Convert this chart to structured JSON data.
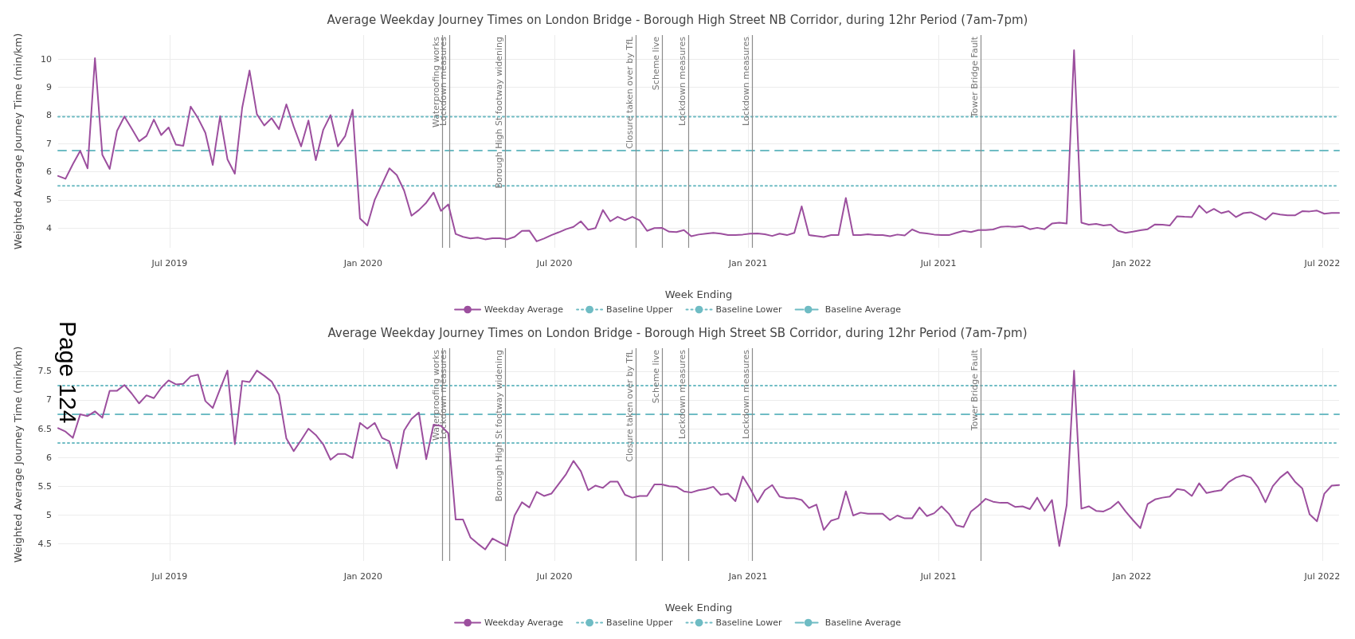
{
  "chart_data": [
    {
      "type": "line",
      "title": "Average Weekday Journey Times on London Bridge - Borough High Street NB Corridor, during 12hr Period (7am-7pm)",
      "xlabel": "Week Ending",
      "ylabel": "Weighted Average Journey Time (min/km)",
      "xlim": [
        "2019-03-17",
        "2022-07-17"
      ],
      "ylim": [
        3.3,
        10.85
      ],
      "xticks": [
        {
          "value": "2019-07-01",
          "label": "Jul 2019"
        },
        {
          "value": "2020-01-01",
          "label": "Jan 2020"
        },
        {
          "value": "2020-07-01",
          "label": "Jul 2020"
        },
        {
          "value": "2021-01-01",
          "label": "Jan 2021"
        },
        {
          "value": "2021-07-01",
          "label": "Jul 2021"
        },
        {
          "value": "2022-01-01",
          "label": "Jan 2022"
        },
        {
          "value": "2022-07-01",
          "label": "Jul 2022"
        }
      ],
      "yticks": [
        4,
        5,
        6,
        7,
        8,
        9,
        10
      ],
      "grid": true,
      "legend": "bottom",
      "marker": "none",
      "x": [
        "2019-03-17",
        "2019-03-24",
        "2019-03-31",
        "2019-04-07",
        "2019-04-14",
        "2019-04-21",
        "2019-04-28",
        "2019-05-05",
        "2019-05-12",
        "2019-05-19",
        "2019-05-26",
        "2019-06-02",
        "2019-06-09",
        "2019-06-16",
        "2019-06-23",
        "2019-06-30",
        "2019-07-07",
        "2019-07-14",
        "2019-07-21",
        "2019-07-28",
        "2019-08-04",
        "2019-08-11",
        "2019-08-18",
        "2019-08-25",
        "2019-09-01",
        "2019-09-08",
        "2019-09-15",
        "2019-09-22",
        "2019-09-29",
        "2019-10-06",
        "2019-10-13",
        "2019-10-20",
        "2019-10-27",
        "2019-11-03",
        "2019-11-10",
        "2019-11-17",
        "2019-11-24",
        "2019-12-01",
        "2019-12-08",
        "2019-12-15",
        "2019-12-22",
        "2019-12-29",
        "2020-01-05",
        "2020-01-12",
        "2020-01-19",
        "2020-01-26",
        "2020-02-02",
        "2020-02-09",
        "2020-02-16",
        "2020-02-23",
        "2020-03-01",
        "2020-03-08",
        "2020-03-15",
        "2020-03-22",
        "2020-03-29",
        "2020-04-05",
        "2020-04-12",
        "2020-04-19",
        "2020-04-26",
        "2020-05-03",
        "2020-05-10",
        "2020-05-17",
        "2020-05-24",
        "2020-05-31",
        "2020-06-07",
        "2020-06-14",
        "2020-06-21",
        "2020-06-28",
        "2020-07-05",
        "2020-07-12",
        "2020-07-19",
        "2020-07-26",
        "2020-08-02",
        "2020-08-09",
        "2020-08-16",
        "2020-08-23",
        "2020-08-30",
        "2020-09-06",
        "2020-09-13",
        "2020-09-20",
        "2020-09-27",
        "2020-10-04",
        "2020-10-11",
        "2020-10-18",
        "2020-10-25",
        "2020-11-01",
        "2020-11-08",
        "2020-11-15",
        "2020-11-22",
        "2020-11-29",
        "2020-12-06",
        "2020-12-13",
        "2020-12-20",
        "2020-12-27",
        "2021-01-03",
        "2021-01-10",
        "2021-01-17",
        "2021-01-24",
        "2021-01-31",
        "2021-02-07",
        "2021-02-14",
        "2021-02-21",
        "2021-02-28",
        "2021-03-07",
        "2021-03-14",
        "2021-03-21",
        "2021-03-28",
        "2021-04-04",
        "2021-04-11",
        "2021-04-18",
        "2021-04-25",
        "2021-05-02",
        "2021-05-09",
        "2021-05-16",
        "2021-05-23",
        "2021-05-30",
        "2021-06-06",
        "2021-06-13",
        "2021-06-20",
        "2021-06-27",
        "2021-07-04",
        "2021-07-11",
        "2021-07-18",
        "2021-07-25",
        "2021-08-01",
        "2021-08-08",
        "2021-08-15",
        "2021-08-22",
        "2021-08-29",
        "2021-09-05",
        "2021-09-12",
        "2021-09-19",
        "2021-09-26",
        "2021-10-03",
        "2021-10-10",
        "2021-10-17",
        "2021-10-24",
        "2021-10-31",
        "2021-11-07",
        "2021-11-14",
        "2021-11-21",
        "2021-11-28",
        "2021-12-05",
        "2021-12-12",
        "2021-12-19",
        "2021-12-26",
        "2022-01-02",
        "2022-01-09",
        "2022-01-16",
        "2022-01-23",
        "2022-01-30",
        "2022-02-06",
        "2022-02-13",
        "2022-02-20",
        "2022-02-27",
        "2022-03-06",
        "2022-03-13",
        "2022-03-20",
        "2022-03-27",
        "2022-04-03",
        "2022-04-10",
        "2022-04-17",
        "2022-04-24",
        "2022-05-01",
        "2022-05-08",
        "2022-05-15",
        "2022-05-22",
        "2022-05-29",
        "2022-06-05",
        "2022-06-12",
        "2022-06-19",
        "2022-06-26",
        "2022-07-03",
        "2022-07-10",
        "2022-07-17"
      ],
      "series": [
        {
          "name": "Weekday Average",
          "color": "#9c4f9e",
          "line_style": "solid",
          "values": [
            5.85,
            5.75,
            6.27,
            6.74,
            6.12,
            10.03,
            6.6,
            6.1,
            7.45,
            7.96,
            7.53,
            7.08,
            7.27,
            7.85,
            7.3,
            7.57,
            6.96,
            6.92,
            8.31,
            7.9,
            7.38,
            6.24,
            7.97,
            6.44,
            5.93,
            8.27,
            9.59,
            8.04,
            7.64,
            7.9,
            7.51,
            8.39,
            7.6,
            6.9,
            7.82,
            6.41,
            7.48,
            8.01,
            6.9,
            7.27,
            8.2,
            4.34,
            4.09,
            5.0,
            5.56,
            6.12,
            5.88,
            5.33,
            4.44,
            4.64,
            4.9,
            5.26,
            4.61,
            4.84,
            3.79,
            3.69,
            3.63,
            3.66,
            3.6,
            3.64,
            3.64,
            3.6,
            3.69,
            3.9,
            3.91,
            3.53,
            3.63,
            3.75,
            3.85,
            3.96,
            4.04,
            4.24,
            3.94,
            4.0,
            4.64,
            4.24,
            4.4,
            4.28,
            4.4,
            4.27,
            3.9,
            4.0,
            4.01,
            3.87,
            3.86,
            3.93,
            3.71,
            3.77,
            3.8,
            3.83,
            3.8,
            3.75,
            3.75,
            3.77,
            3.8,
            3.81,
            3.78,
            3.72,
            3.8,
            3.75,
            3.83,
            4.77,
            3.75,
            3.72,
            3.68,
            3.75,
            3.75,
            5.07,
            3.75,
            3.75,
            3.78,
            3.75,
            3.75,
            3.71,
            3.77,
            3.74,
            3.95,
            3.84,
            3.81,
            3.77,
            3.75,
            3.75,
            3.83,
            3.9,
            3.86,
            3.93,
            3.93,
            3.95,
            4.04,
            4.06,
            4.04,
            4.07,
            3.96,
            4.01,
            3.96,
            4.16,
            4.19,
            4.16,
            10.31,
            4.19,
            4.12,
            4.15,
            4.09,
            4.12,
            3.9,
            3.83,
            3.87,
            3.92,
            3.96,
            4.13,
            4.12,
            4.09,
            4.42,
            4.4,
            4.39,
            4.8,
            4.54,
            4.68,
            4.53,
            4.6,
            4.39,
            4.53,
            4.56,
            4.44,
            4.3,
            4.53,
            4.48,
            4.45,
            4.45,
            4.6,
            4.59,
            4.62,
            4.51,
            4.54,
            4.54
          ]
        },
        {
          "name": "Baseline Upper",
          "color": "#6fbcc4",
          "line_style": "dotted",
          "x": [
            "2019-03-17",
            "2022-07-17"
          ],
          "values": [
            7.95,
            7.95
          ]
        },
        {
          "name": "Baseline Lower",
          "color": "#6fbcc4",
          "line_style": "dotted",
          "x": [
            "2019-03-17",
            "2022-07-17"
          ],
          "values": [
            5.5,
            5.5
          ]
        },
        {
          "name": "Baseline Average",
          "color": "#6fbcc4",
          "line_style": "dashed",
          "x": [
            "2019-03-17",
            "2022-07-17"
          ],
          "values": [
            6.75,
            6.75
          ]
        }
      ],
      "ref_lines": [
        {
          "axis": "x",
          "value": "2020-03-16",
          "label": "Waterproofing works",
          "color": "#8c8c8c"
        },
        {
          "axis": "x",
          "value": "2020-03-23",
          "label": "Lockdown measures",
          "color": "#8c8c8c"
        },
        {
          "axis": "x",
          "value": "2020-05-15",
          "label": "Borough High St footway widening",
          "color": "#8c8c8c"
        },
        {
          "axis": "x",
          "value": "2020-09-16",
          "label": "Closure taken over by TfL",
          "color": "#8c8c8c"
        },
        {
          "axis": "x",
          "value": "2020-10-11",
          "label": "Scheme live",
          "color": "#8c8c8c"
        },
        {
          "axis": "x",
          "value": "2020-11-05",
          "label": "Lockdown measures",
          "color": "#8c8c8c"
        },
        {
          "axis": "x",
          "value": "2021-01-05",
          "label": "Lockdown measures",
          "color": "#8c8c8c"
        },
        {
          "axis": "x",
          "value": "2021-08-10",
          "label": "Tower Bridge Fault",
          "color": "#8c8c8c"
        }
      ]
    },
    {
      "type": "line",
      "title": "Average Weekday Journey Times on London Bridge - Borough High Street SB Corridor, during 12hr Period (7am-7pm)",
      "xlabel": "Week Ending",
      "ylabel": "Weighted Average Journey Time (min/km)",
      "annotations": [
        "Page 124"
      ],
      "xlim": [
        "2019-03-17",
        "2022-07-17"
      ],
      "ylim": [
        4.2,
        7.9
      ],
      "xticks": [
        {
          "value": "2019-07-01",
          "label": "Jul 2019"
        },
        {
          "value": "2020-01-01",
          "label": "Jan 2020"
        },
        {
          "value": "2020-07-01",
          "label": "Jul 2020"
        },
        {
          "value": "2021-01-01",
          "label": "Jan 2021"
        },
        {
          "value": "2021-07-01",
          "label": "Jul 2021"
        },
        {
          "value": "2022-01-01",
          "label": "Jan 2022"
        },
        {
          "value": "2022-07-01",
          "label": "Jul 2022"
        }
      ],
      "yticks": [
        4.5,
        5,
        5.5,
        6,
        6.5,
        7,
        7.5
      ],
      "grid": true,
      "legend": "bottom",
      "marker": "none",
      "x": [
        "2019-03-17",
        "2019-03-24",
        "2019-03-31",
        "2019-04-07",
        "2019-04-14",
        "2019-04-21",
        "2019-04-28",
        "2019-05-05",
        "2019-05-12",
        "2019-05-19",
        "2019-05-26",
        "2019-06-02",
        "2019-06-09",
        "2019-06-16",
        "2019-06-23",
        "2019-06-30",
        "2019-07-07",
        "2019-07-14",
        "2019-07-21",
        "2019-07-28",
        "2019-08-04",
        "2019-08-11",
        "2019-08-18",
        "2019-08-25",
        "2019-09-01",
        "2019-09-08",
        "2019-09-15",
        "2019-09-22",
        "2019-09-29",
        "2019-10-06",
        "2019-10-13",
        "2019-10-20",
        "2019-10-27",
        "2019-11-03",
        "2019-11-10",
        "2019-11-17",
        "2019-11-24",
        "2019-12-01",
        "2019-12-08",
        "2019-12-15",
        "2019-12-22",
        "2019-12-29",
        "2020-01-05",
        "2020-01-12",
        "2020-01-19",
        "2020-01-26",
        "2020-02-02",
        "2020-02-09",
        "2020-02-16",
        "2020-02-23",
        "2020-03-01",
        "2020-03-08",
        "2020-03-15",
        "2020-03-22",
        "2020-03-29",
        "2020-04-05",
        "2020-04-12",
        "2020-04-19",
        "2020-04-26",
        "2020-05-03",
        "2020-05-10",
        "2020-05-17",
        "2020-05-24",
        "2020-05-31",
        "2020-06-07",
        "2020-06-14",
        "2020-06-21",
        "2020-06-28",
        "2020-07-05",
        "2020-07-12",
        "2020-07-19",
        "2020-07-26",
        "2020-08-02",
        "2020-08-09",
        "2020-08-16",
        "2020-08-23",
        "2020-08-30",
        "2020-09-06",
        "2020-09-13",
        "2020-09-20",
        "2020-09-27",
        "2020-10-04",
        "2020-10-11",
        "2020-10-18",
        "2020-10-25",
        "2020-11-01",
        "2020-11-08",
        "2020-11-15",
        "2020-11-22",
        "2020-11-29",
        "2020-12-06",
        "2020-12-13",
        "2020-12-20",
        "2020-12-27",
        "2021-01-03",
        "2021-01-10",
        "2021-01-17",
        "2021-01-24",
        "2021-01-31",
        "2021-02-07",
        "2021-02-14",
        "2021-02-21",
        "2021-02-28",
        "2021-03-07",
        "2021-03-14",
        "2021-03-21",
        "2021-03-28",
        "2021-04-04",
        "2021-04-11",
        "2021-04-18",
        "2021-04-25",
        "2021-05-02",
        "2021-05-09",
        "2021-05-16",
        "2021-05-23",
        "2021-05-30",
        "2021-06-06",
        "2021-06-13",
        "2021-06-20",
        "2021-06-27",
        "2021-07-04",
        "2021-07-11",
        "2021-07-18",
        "2021-07-25",
        "2021-08-01",
        "2021-08-08",
        "2021-08-15",
        "2021-08-22",
        "2021-08-29",
        "2021-09-05",
        "2021-09-12",
        "2021-09-19",
        "2021-09-26",
        "2021-10-03",
        "2021-10-10",
        "2021-10-17",
        "2021-10-24",
        "2021-10-31",
        "2021-11-07",
        "2021-11-14",
        "2021-11-21",
        "2021-11-28",
        "2021-12-05",
        "2021-12-12",
        "2021-12-19",
        "2021-12-26",
        "2022-01-02",
        "2022-01-09",
        "2022-01-16",
        "2022-01-23",
        "2022-01-30",
        "2022-02-06",
        "2022-02-13",
        "2022-02-20",
        "2022-02-27",
        "2022-03-06",
        "2022-03-13",
        "2022-03-20",
        "2022-03-27",
        "2022-04-03",
        "2022-04-10",
        "2022-04-17",
        "2022-04-24",
        "2022-05-01",
        "2022-05-08",
        "2022-05-15",
        "2022-05-22",
        "2022-05-29",
        "2022-06-05",
        "2022-06-12",
        "2022-06-19",
        "2022-06-26",
        "2022-07-03",
        "2022-07-10",
        "2022-07-17"
      ],
      "series": [
        {
          "name": "Weekday Average",
          "color": "#9c4f9e",
          "line_style": "solid",
          "values": [
            6.51,
            6.45,
            6.34,
            6.75,
            6.72,
            6.8,
            6.69,
            7.16,
            7.16,
            7.26,
            7.11,
            6.94,
            7.08,
            7.03,
            7.21,
            7.34,
            7.27,
            7.28,
            7.41,
            7.44,
            6.98,
            6.86,
            7.19,
            7.51,
            6.23,
            7.33,
            7.31,
            7.51,
            7.42,
            7.32,
            7.09,
            6.33,
            6.11,
            6.3,
            6.5,
            6.39,
            6.23,
            5.96,
            6.06,
            6.06,
            5.99,
            6.6,
            6.5,
            6.6,
            6.34,
            6.28,
            5.81,
            6.47,
            6.67,
            6.78,
            5.97,
            6.57,
            6.55,
            6.42,
            4.92,
            4.92,
            4.61,
            4.5,
            4.4,
            4.59,
            4.52,
            4.46,
            4.99,
            5.22,
            5.13,
            5.4,
            5.33,
            5.37,
            5.54,
            5.71,
            5.94,
            5.76,
            5.43,
            5.51,
            5.47,
            5.58,
            5.58,
            5.35,
            5.3,
            5.33,
            5.33,
            5.53,
            5.53,
            5.5,
            5.49,
            5.41,
            5.39,
            5.43,
            5.45,
            5.49,
            5.35,
            5.37,
            5.24,
            5.67,
            5.46,
            5.22,
            5.43,
            5.52,
            5.32,
            5.29,
            5.29,
            5.26,
            5.12,
            5.18,
            4.74,
            4.9,
            4.94,
            5.41,
            4.99,
            5.04,
            5.02,
            5.02,
            5.02,
            4.91,
            4.99,
            4.94,
            4.94,
            5.13,
            4.98,
            5.03,
            5.15,
            5.02,
            4.82,
            4.79,
            5.06,
            5.16,
            5.28,
            5.23,
            5.21,
            5.21,
            5.14,
            5.15,
            5.1,
            5.3,
            5.07,
            5.26,
            4.46,
            5.17,
            7.51,
            5.11,
            5.15,
            5.07,
            5.06,
            5.12,
            5.23,
            5.06,
            4.91,
            4.77,
            5.19,
            5.27,
            5.3,
            5.32,
            5.45,
            5.43,
            5.33,
            5.55,
            5.38,
            5.41,
            5.43,
            5.57,
            5.65,
            5.69,
            5.65,
            5.48,
            5.22,
            5.5,
            5.65,
            5.75,
            5.58,
            5.46,
            5.01,
            4.89,
            5.37,
            5.51,
            5.52
          ]
        },
        {
          "name": "Baseline Upper",
          "color": "#6fbcc4",
          "line_style": "dotted",
          "x": [
            "2019-03-17",
            "2022-07-17"
          ],
          "values": [
            7.25,
            7.25
          ]
        },
        {
          "name": "Baseline Lower",
          "color": "#6fbcc4",
          "line_style": "dotted",
          "x": [
            "2019-03-17",
            "2022-07-17"
          ],
          "values": [
            6.25,
            6.25
          ]
        },
        {
          "name": "Baseline Average",
          "color": "#6fbcc4",
          "line_style": "dashed",
          "x": [
            "2019-03-17",
            "2022-07-17"
          ],
          "values": [
            6.75,
            6.75
          ]
        }
      ],
      "ref_lines": [
        {
          "axis": "x",
          "value": "2020-03-16",
          "label": "Waterproofing works",
          "color": "#8c8c8c"
        },
        {
          "axis": "x",
          "value": "2020-03-23",
          "label": "Lockdown measures",
          "color": "#8c8c8c"
        },
        {
          "axis": "x",
          "value": "2020-05-15",
          "label": "Borough High St footway widening",
          "color": "#8c8c8c"
        },
        {
          "axis": "x",
          "value": "2020-09-16",
          "label": "Closure taken over by TfL",
          "color": "#8c8c8c"
        },
        {
          "axis": "x",
          "value": "2020-10-11",
          "label": "Scheme live",
          "color": "#8c8c8c"
        },
        {
          "axis": "x",
          "value": "2020-11-05",
          "label": "Lockdown measures",
          "color": "#8c8c8c"
        },
        {
          "axis": "x",
          "value": "2021-01-05",
          "label": "Lockdown measures",
          "color": "#8c8c8c"
        },
        {
          "axis": "x",
          "value": "2021-08-10",
          "label": "Tower Bridge Fault",
          "color": "#8c8c8c"
        }
      ]
    }
  ]
}
